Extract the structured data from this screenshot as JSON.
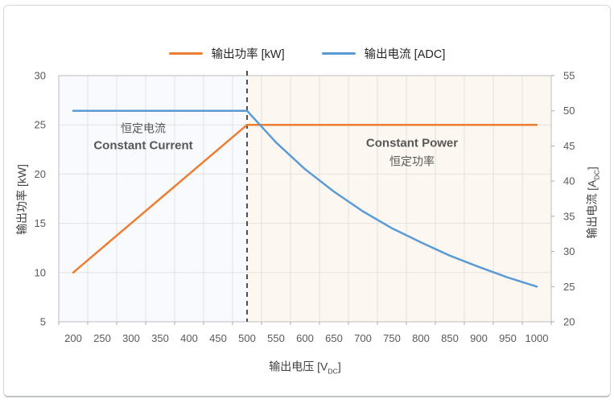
{
  "legend": {
    "items": [
      {
        "label": "输出功率 [kW]",
        "color": "#ED7D31"
      },
      {
        "label": "输出电流 [ADC]",
        "color": "#5B9BD5"
      }
    ]
  },
  "axes": {
    "x_title": {
      "pre": "输出电压 [V",
      "sub": "DC",
      "post": "]"
    },
    "y_left_title": "输出功率 [kW]",
    "y_right_title": {
      "pre": "输出电流 [A",
      "sub": "DC",
      "post": "]"
    }
  },
  "annotations": {
    "constant_current": {
      "zh": "恒定电流",
      "en": "Constant Current"
    },
    "constant_power": {
      "en": "Constant Power",
      "zh": "恒定功率"
    }
  },
  "chart_data": {
    "type": "line",
    "x": [
      200,
      250,
      300,
      350,
      400,
      450,
      500,
      550,
      600,
      650,
      700,
      750,
      800,
      850,
      900,
      950,
      1000
    ],
    "series": [
      {
        "name": "输出功率 [kW]",
        "axis": "left",
        "color": "#ED7D31",
        "values": [
          10,
          12.5,
          15,
          17.5,
          20,
          22.5,
          25,
          25,
          25,
          25,
          25,
          25,
          25,
          25,
          25,
          25,
          25
        ]
      },
      {
        "name": "输出电流 [ADC]",
        "axis": "right",
        "color": "#5B9BD5",
        "values": [
          50,
          50,
          50,
          50,
          50,
          50,
          50,
          45.5,
          41.7,
          38.5,
          35.7,
          33.3,
          31.3,
          29.4,
          27.8,
          26.3,
          25
        ]
      }
    ],
    "xlabel": "输出电压 [VDC]",
    "ylabel_left": "输出功率 [kW]",
    "ylabel_right": "输出电流 [ADC]",
    "y_left": {
      "min": 5,
      "max": 30,
      "step": 5,
      "ticks": [
        30,
        25,
        20,
        15,
        10,
        5
      ]
    },
    "y_right": {
      "min": 20,
      "max": 55,
      "step": 5,
      "ticks": [
        55,
        50,
        45,
        40,
        35,
        30,
        25,
        20
      ]
    },
    "reference_line_x": 500,
    "grid": true,
    "legend_position": "top",
    "regions": [
      {
        "from": 200,
        "to": 500,
        "color": "#f8fafd",
        "label": "Constant Current"
      },
      {
        "from": 500,
        "to": 1000,
        "color": "#fcf8f1",
        "label": "Constant Power"
      }
    ],
    "style": {
      "grid_color": "#e2e1df",
      "border_color": "#c6c6c6",
      "tick_color": "#a8a8a8",
      "tick_label_color": "#595959",
      "ref_line_color": "#3d3d3d"
    }
  }
}
